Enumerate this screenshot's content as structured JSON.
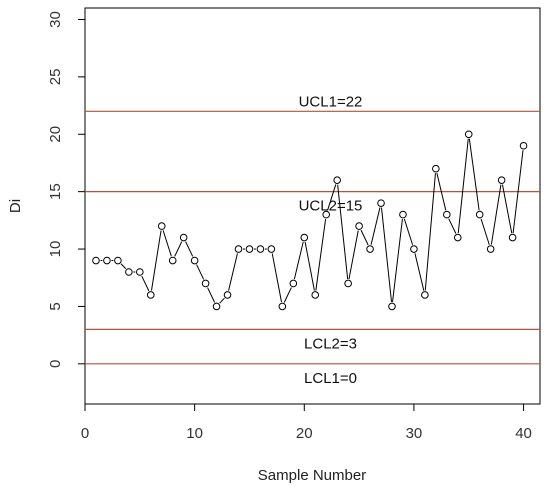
{
  "chart_data": {
    "type": "line",
    "xlabel": "Sample Number",
    "ylabel": "Di",
    "xlim": [
      0,
      41.5
    ],
    "ylim": [
      -3.5,
      31
    ],
    "x_ticks": [
      0,
      10,
      20,
      30,
      40
    ],
    "y_ticks": [
      0,
      5,
      10,
      15,
      20,
      25,
      30
    ],
    "grid": false,
    "line_color": "#000000",
    "limit_color": "#b5533c",
    "series": [
      {
        "x": [
          1,
          2,
          3,
          4,
          5,
          6,
          7,
          8,
          9,
          10,
          11,
          12,
          13,
          14,
          15,
          16,
          17,
          18,
          19,
          20,
          21,
          22,
          23,
          24,
          25,
          26,
          27,
          28,
          29,
          30,
          31,
          32,
          33,
          34,
          35,
          36,
          37,
          38,
          39,
          40
        ],
        "values": [
          9,
          9,
          9,
          8,
          8,
          6,
          12,
          9,
          11,
          9,
          7,
          5,
          6,
          10,
          10,
          10,
          10,
          5,
          7,
          11,
          6,
          13,
          16,
          7,
          12,
          10,
          14,
          5,
          13,
          10,
          6,
          17,
          13,
          11,
          20,
          13,
          10,
          16,
          11,
          19
        ]
      }
    ],
    "limits": [
      {
        "value": 22,
        "label": "UCL1=22"
      },
      {
        "value": 15,
        "label": "UCL2=15"
      },
      {
        "value": 3,
        "label": "LCL2=3"
      },
      {
        "value": 0,
        "label": "LCL1=0"
      }
    ]
  }
}
